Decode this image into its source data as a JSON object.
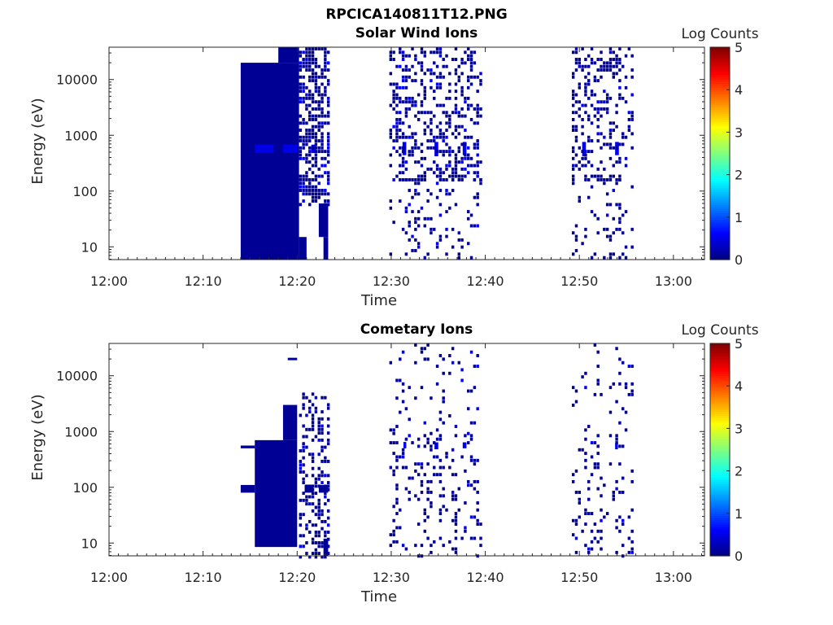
{
  "figure_title": "RPCICA140811T12.PNG",
  "chart_data": [
    {
      "type": "heatmap",
      "title": "Solar Wind Ions",
      "xlabel": "Time",
      "ylabel": "Energy (eV)",
      "x_ticks": [
        "12:00",
        "12:10",
        "12:20",
        "12:30",
        "12:40",
        "12:50",
        "13:00"
      ],
      "x_range_minutes": [
        0,
        63.3
      ],
      "y_scale": "log",
      "y_ticks": [
        10,
        100,
        1000,
        10000
      ],
      "y_range": [
        5.9,
        38000
      ],
      "colorbar": {
        "label": "Log Counts",
        "ticks": [
          0,
          1,
          2,
          3,
          4,
          5
        ],
        "range": [
          0,
          5
        ],
        "colormap": "jet"
      },
      "blocks": [
        {
          "t": [
            14.0,
            20.2
          ],
          "e": [
            5.9,
            20000
          ],
          "logc": 0.1
        },
        {
          "t": [
            18.0,
            20.2
          ],
          "e": [
            20000,
            38000
          ],
          "logc": 0.1
        },
        {
          "t": [
            15.5,
            17.5
          ],
          "e": [
            480,
            680
          ],
          "logc": 0.5
        },
        {
          "t": [
            18.5,
            20.0
          ],
          "e": [
            480,
            680
          ],
          "logc": 0.5
        },
        {
          "t": [
            21.5,
            22.0
          ],
          "e": [
            480,
            680
          ],
          "logc": 0.6
        },
        {
          "t": [
            20.2,
            21.0
          ],
          "e": [
            5.9,
            15
          ],
          "logc": 0.1
        },
        {
          "t": [
            22.8,
            23.3
          ],
          "e": [
            5.9,
            15
          ],
          "logc": 0.1
        },
        {
          "t": [
            22.3,
            23.3
          ],
          "e": [
            15,
            60
          ],
          "logc": 0.1
        },
        {
          "t": [
            31.2,
            31.6
          ],
          "e": [
            440,
            760
          ],
          "logc": 0.6
        },
        {
          "t": [
            34.6,
            35.0
          ],
          "e": [
            420,
            760
          ],
          "logc": 0.6
        },
        {
          "t": [
            37.6,
            38.0
          ],
          "e": [
            440,
            760
          ],
          "logc": 0.6
        },
        {
          "t": [
            50.3,
            50.7
          ],
          "e": [
            420,
            760
          ],
          "logc": 0.6
        },
        {
          "t": [
            53.8,
            54.2
          ],
          "e": [
            440,
            760
          ],
          "logc": 0.6
        }
      ],
      "scatter_regions": [
        {
          "t": [
            20.2,
            23.5
          ],
          "e": [
            60,
            38000
          ],
          "density": 0.55
        },
        {
          "t": [
            29.8,
            39.5
          ],
          "e": [
            170,
            38000
          ],
          "density": 0.32
        },
        {
          "t": [
            29.8,
            39.5
          ],
          "e": [
            5.9,
            170
          ],
          "density": 0.14
        },
        {
          "t": [
            49.2,
            55.6
          ],
          "e": [
            170,
            38000
          ],
          "density": 0.28
        },
        {
          "t": [
            49.2,
            55.6
          ],
          "e": [
            5.9,
            170
          ],
          "density": 0.13
        }
      ]
    },
    {
      "type": "heatmap",
      "title": "Cometary Ions",
      "xlabel": "Time",
      "ylabel": "Energy (eV)",
      "x_ticks": [
        "12:00",
        "12:10",
        "12:20",
        "12:30",
        "12:40",
        "12:50",
        "13:00"
      ],
      "x_range_minutes": [
        0,
        63.3
      ],
      "y_scale": "log",
      "y_ticks": [
        10,
        100,
        1000,
        10000
      ],
      "y_range": [
        5.9,
        38000
      ],
      "colorbar": {
        "label": "Log Counts",
        "ticks": [
          0,
          1,
          2,
          3,
          4,
          5
        ],
        "range": [
          0,
          5
        ],
        "colormap": "jet"
      },
      "blocks": [
        {
          "t": [
            15.5,
            20.0
          ],
          "e": [
            8.5,
            700
          ],
          "logc": 0.1
        },
        {
          "t": [
            14.0,
            15.5
          ],
          "e": [
            80,
            110
          ],
          "logc": 0.1
        },
        {
          "t": [
            14.0,
            15.5
          ],
          "e": [
            500,
            560
          ],
          "logc": 0.1
        },
        {
          "t": [
            18.5,
            20.0
          ],
          "e": [
            700,
            3000
          ],
          "logc": 0.1
        },
        {
          "t": [
            19.0,
            20.0
          ],
          "e": [
            19000,
            21000
          ],
          "logc": 0.1
        },
        {
          "t": [
            20.8,
            21.7
          ],
          "e": [
            80,
            110
          ],
          "logc": 0.1
        },
        {
          "t": [
            22.3,
            23.3
          ],
          "e": [
            80,
            110
          ],
          "logc": 0.1
        },
        {
          "t": [
            22.8,
            23.3
          ],
          "e": [
            5.9,
            12
          ],
          "logc": 0.1
        },
        {
          "t": [
            31.3,
            31.6
          ],
          "e": [
            500,
            650
          ],
          "logc": 0.6
        },
        {
          "t": [
            34.6,
            35.0
          ],
          "e": [
            480,
            640
          ],
          "logc": 0.5
        },
        {
          "t": [
            37.6,
            38.0
          ],
          "e": [
            500,
            640
          ],
          "logc": 0.5
        },
        {
          "t": [
            53.8,
            54.1
          ],
          "e": [
            480,
            620
          ],
          "logc": 0.6
        }
      ],
      "scatter_regions": [
        {
          "t": [
            20.2,
            23.5
          ],
          "e": [
            6,
            5000
          ],
          "density": 0.35
        },
        {
          "t": [
            29.8,
            39.5
          ],
          "e": [
            900,
            38000
          ],
          "density": 0.06
        },
        {
          "t": [
            29.8,
            39.5
          ],
          "e": [
            5.9,
            900
          ],
          "density": 0.16
        },
        {
          "t": [
            49.2,
            55.6
          ],
          "e": [
            900,
            38000
          ],
          "density": 0.06
        },
        {
          "t": [
            49.2,
            55.6
          ],
          "e": [
            5.9,
            900
          ],
          "density": 0.15
        }
      ]
    }
  ]
}
